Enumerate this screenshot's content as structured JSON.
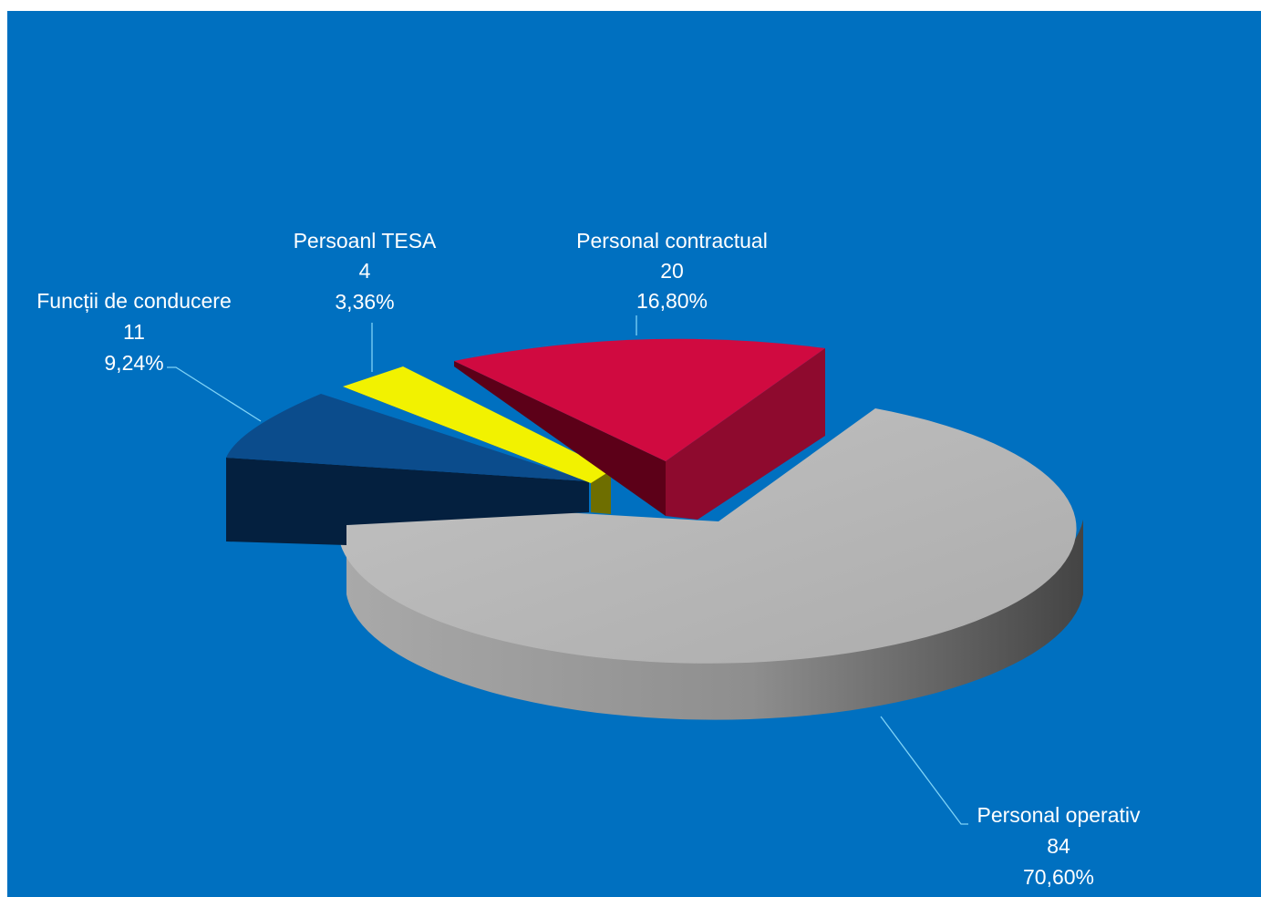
{
  "chart_data": {
    "type": "pie",
    "style": "3d-exploded",
    "background_color": "#0070c0",
    "slices": [
      {
        "label": "Personal operativ",
        "value": 84,
        "percent": "70,60%",
        "value_text": "84",
        "color": "#b4b4b4"
      },
      {
        "label": "Funcții de conducere",
        "value": 11,
        "percent": "9,24%",
        "value_text": "11",
        "color": "#0b4c8c"
      },
      {
        "label": "Persoanl TESA",
        "value": 4,
        "percent": "3,36%",
        "value_text": "4",
        "color": "#f2f200"
      },
      {
        "label": "Personal contractual",
        "value": 20,
        "percent": "16,80%",
        "value_text": "20",
        "color": "#d00a40"
      }
    ],
    "leader_line_color": "#7fd3f7"
  }
}
